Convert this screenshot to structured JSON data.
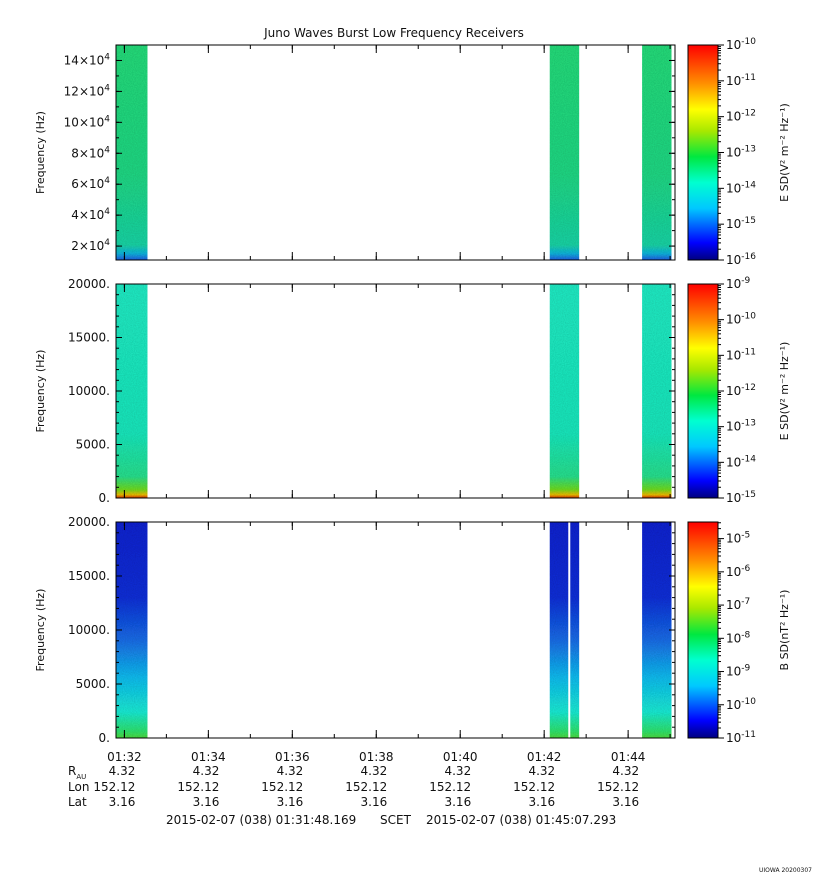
{
  "title": "Juno Waves Burst Low Frequency Receivers",
  "chart_data": [
    {
      "type": "heatmap",
      "name": "panel-1",
      "ylabel": "Frequency (Hz)",
      "ylim": [
        11000,
        150000
      ],
      "yticks": [
        20000,
        40000,
        60000,
        80000,
        100000,
        120000,
        140000
      ],
      "ytick_labels": [
        {
          "base": "2×10",
          "exp": "4"
        },
        {
          "base": "4×10",
          "exp": "4"
        },
        {
          "base": "6×10",
          "exp": "4"
        },
        {
          "base": "8×10",
          "exp": "4"
        },
        {
          "base": "10×10",
          "exp": "4"
        },
        {
          "base": "12×10",
          "exp": "4"
        },
        {
          "base": "14×10",
          "exp": "4"
        }
      ],
      "colorbar": {
        "label": "E SD(V² m⁻² Hz⁻¹)",
        "log_range": [
          -16,
          -10
        ],
        "ticks": [
          -16,
          -15,
          -14,
          -13,
          -12,
          -11,
          -10
        ]
      },
      "data_blocks": [
        {
          "start": "01:31:48",
          "end": "01:32:33",
          "level": -13.3
        },
        {
          "start": "01:42:08",
          "end": "01:42:50",
          "level": -13.3
        },
        {
          "start": "01:44:20",
          "end": "01:45:02",
          "level": -13.3
        }
      ]
    },
    {
      "type": "heatmap",
      "name": "panel-2",
      "ylabel": "Frequency (Hz)",
      "ylim": [
        0,
        20000
      ],
      "yticks": [
        0,
        5000,
        10000,
        15000,
        20000
      ],
      "ytick_labels": [
        "0.",
        "5000.",
        "10000.",
        "15000.",
        "20000."
      ],
      "colorbar": {
        "label": "E SD(V² m⁻² Hz⁻¹)",
        "log_range": [
          -15,
          -9
        ],
        "ticks": [
          -15,
          -14,
          -13,
          -12,
          -11,
          -10,
          -9
        ]
      },
      "data_blocks": [
        {
          "start": "01:31:48",
          "end": "01:32:33",
          "level": -13.0
        },
        {
          "start": "01:42:08",
          "end": "01:42:50",
          "level": -13.0
        },
        {
          "start": "01:44:20",
          "end": "01:45:02",
          "level": -13.0
        }
      ]
    },
    {
      "type": "heatmap",
      "name": "panel-3",
      "ylabel": "Frequency (Hz)",
      "ylim": [
        0,
        20000
      ],
      "yticks": [
        0,
        5000,
        10000,
        15000,
        20000
      ],
      "ytick_labels": [
        "0.",
        "5000.",
        "10000.",
        "15000.",
        "20000."
      ],
      "colorbar": {
        "label": "B SD(nT² Hz⁻¹)",
        "log_range": [
          -11,
          -4.5
        ],
        "ticks": [
          -11,
          -10,
          -9,
          -8,
          -7,
          -6,
          -5
        ]
      },
      "data_blocks": [
        {
          "start": "01:31:48",
          "end": "01:32:33",
          "level": -10.2
        },
        {
          "start": "01:42:08",
          "end": "01:42:50",
          "level": -10.2
        },
        {
          "start": "01:44:20",
          "end": "01:45:02",
          "level": -10.2
        }
      ]
    }
  ],
  "xaxis": {
    "range": [
      "01:31:48",
      "01:45:07"
    ],
    "major_ticks": [
      "01:32",
      "01:34",
      "01:36",
      "01:38",
      "01:40",
      "01:42",
      "01:44"
    ]
  },
  "ephemeris": {
    "labels": [
      "R",
      "Lon",
      "Lat"
    ],
    "r_subscript": "AU",
    "rows": [
      {
        "r": "4.32",
        "lon": "152.12",
        "lat": "3.16"
      },
      {
        "r": "4.32",
        "lon": "152.12",
        "lat": "3.16"
      },
      {
        "r": "4.32",
        "lon": "152.12",
        "lat": "3.16"
      },
      {
        "r": "4.32",
        "lon": "152.12",
        "lat": "3.16"
      },
      {
        "r": "4.32",
        "lon": "152.12",
        "lat": "3.16"
      },
      {
        "r": "4.32",
        "lon": "152.12",
        "lat": "3.16"
      },
      {
        "r": "4.32",
        "lon": "152.12",
        "lat": "3.16"
      }
    ]
  },
  "time_range": {
    "start": "2015-02-07 (038) 01:31:48.169",
    "middle": "SCET",
    "end": "2015-02-07 (038) 01:45:07.293"
  },
  "footer_tag": "UIOWA 20200307",
  "colors": {
    "panel-1": "#22e07a",
    "panel-2": "#1cf0c8",
    "panel-3": "#1030d8"
  }
}
